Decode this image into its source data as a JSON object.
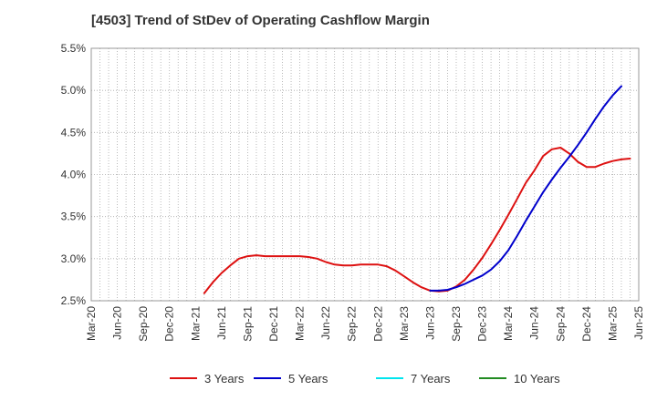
{
  "chart_data": {
    "type": "line",
    "title": "[4503]  Trend of StDev of Operating Cashflow Margin",
    "xlabel": "",
    "ylabel": "",
    "x_ticks": [
      "Mar-20",
      "Jun-20",
      "Sep-20",
      "Dec-20",
      "Mar-21",
      "Jun-21",
      "Sep-21",
      "Dec-21",
      "Mar-22",
      "Jun-22",
      "Sep-22",
      "Dec-22",
      "Mar-23",
      "Jun-23",
      "Sep-23",
      "Dec-23",
      "Mar-24",
      "Jun-24",
      "Sep-24",
      "Dec-24",
      "Mar-25",
      "Jun-25"
    ],
    "y_ticks": [
      "2.5%",
      "3.0%",
      "3.5%",
      "4.0%",
      "4.5%",
      "5.0%",
      "5.5%"
    ],
    "ylim": [
      2.5,
      5.5
    ],
    "grid": true,
    "legend_position": "bottom",
    "series": [
      {
        "name": "3 Years",
        "color": "#dd1111",
        "points": [
          [
            "Apr-21",
            2.59
          ],
          [
            "May-21",
            2.72
          ],
          [
            "Jun-21",
            2.83
          ],
          [
            "Jul-21",
            2.92
          ],
          [
            "Aug-21",
            3.0
          ],
          [
            "Sep-21",
            3.03
          ],
          [
            "Oct-21",
            3.04
          ],
          [
            "Nov-21",
            3.03
          ],
          [
            "Dec-21",
            3.03
          ],
          [
            "Jan-22",
            3.03
          ],
          [
            "Feb-22",
            3.03
          ],
          [
            "Mar-22",
            3.03
          ],
          [
            "Apr-22",
            3.02
          ],
          [
            "May-22",
            3.0
          ],
          [
            "Jun-22",
            2.96
          ],
          [
            "Jul-22",
            2.93
          ],
          [
            "Aug-22",
            2.92
          ],
          [
            "Sep-22",
            2.92
          ],
          [
            "Oct-22",
            2.93
          ],
          [
            "Nov-22",
            2.93
          ],
          [
            "Dec-22",
            2.93
          ],
          [
            "Jan-23",
            2.91
          ],
          [
            "Feb-23",
            2.86
          ],
          [
            "Mar-23",
            2.79
          ],
          [
            "Apr-23",
            2.72
          ],
          [
            "May-23",
            2.66
          ],
          [
            "Jun-23",
            2.62
          ],
          [
            "Jul-23",
            2.61
          ],
          [
            "Aug-23",
            2.62
          ],
          [
            "Sep-23",
            2.67
          ],
          [
            "Oct-23",
            2.75
          ],
          [
            "Nov-23",
            2.87
          ],
          [
            "Dec-23",
            3.01
          ],
          [
            "Jan-24",
            3.17
          ],
          [
            "Feb-24",
            3.34
          ],
          [
            "Mar-24",
            3.52
          ],
          [
            "Apr-24",
            3.71
          ],
          [
            "May-24",
            3.9
          ],
          [
            "Jun-24",
            4.05
          ],
          [
            "Jul-24",
            4.22
          ],
          [
            "Aug-24",
            4.3
          ],
          [
            "Sep-24",
            4.32
          ],
          [
            "Oct-24",
            4.25
          ],
          [
            "Nov-24",
            4.15
          ],
          [
            "Dec-24",
            4.09
          ],
          [
            "Jan-25",
            4.09
          ],
          [
            "Feb-25",
            4.13
          ],
          [
            "Mar-25",
            4.16
          ],
          [
            "Apr-25",
            4.18
          ],
          [
            "May-25",
            4.19
          ]
        ]
      },
      {
        "name": "5 Years",
        "color": "#0000cc",
        "points": [
          [
            "Jun-23",
            2.62
          ],
          [
            "Jul-23",
            2.62
          ],
          [
            "Aug-23",
            2.63
          ],
          [
            "Sep-23",
            2.66
          ],
          [
            "Oct-23",
            2.7
          ],
          [
            "Nov-23",
            2.75
          ],
          [
            "Dec-23",
            2.8
          ],
          [
            "Jan-24",
            2.87
          ],
          [
            "Feb-24",
            2.97
          ],
          [
            "Mar-24",
            3.1
          ],
          [
            "Apr-24",
            3.27
          ],
          [
            "May-24",
            3.45
          ],
          [
            "Jun-24",
            3.62
          ],
          [
            "Jul-24",
            3.79
          ],
          [
            "Aug-24",
            3.94
          ],
          [
            "Sep-24",
            4.08
          ],
          [
            "Oct-24",
            4.21
          ],
          [
            "Nov-24",
            4.35
          ],
          [
            "Dec-24",
            4.5
          ],
          [
            "Jan-25",
            4.66
          ],
          [
            "Feb-25",
            4.81
          ],
          [
            "Mar-25",
            4.94
          ],
          [
            "Apr-25",
            5.05
          ]
        ]
      },
      {
        "name": "7 Years",
        "color": "#00e5ee",
        "points": []
      },
      {
        "name": "10 Years",
        "color": "#228b22",
        "points": []
      }
    ]
  }
}
